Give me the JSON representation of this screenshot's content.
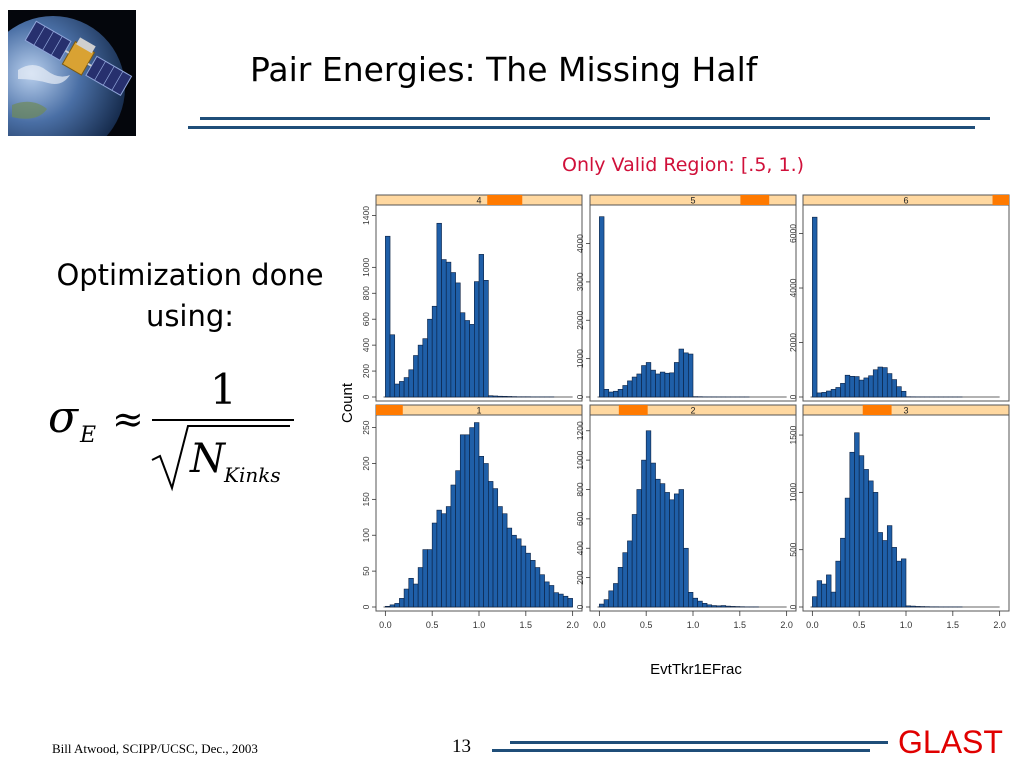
{
  "slide": {
    "title": "Pair Energies: The Missing Half",
    "subnote": "Only Valid Region: [.5, 1.)",
    "optimization_line1": "Optimization done",
    "optimization_line2": "using:",
    "formula": {
      "lhs_symbol": "σ",
      "lhs_subscript": "E",
      "approx": "≈",
      "numerator": "1",
      "denominator_symbol": "N",
      "denominator_subscript": "Kinks"
    },
    "footer": {
      "author": "Bill Atwood,  SCIPP/UCSC, Dec., 2003",
      "page": "13",
      "brand": "GLAST"
    },
    "logo_icon": "glast-satellite-over-earth-icon",
    "colors": {
      "title_rule": "#1f4e79",
      "subnote": "#d0103a",
      "brand": "#e00000",
      "bar_fill": "#1f5fa8",
      "bar_stroke": "#0a1f40",
      "strip_bg": "#ffd8a0",
      "strip_marker": "#ff7a00"
    }
  },
  "chart_data": {
    "type": "bar",
    "xlabel": "EvtTkr1EFrac",
    "ylabel": "Count",
    "x_ticks": [
      "0.0",
      "0.5",
      "1.0",
      "1.5",
      "2.0"
    ],
    "xlim": [
      -0.1,
      2.1
    ],
    "bin_start": 0.0,
    "bin_width": 0.05,
    "panels": [
      {
        "strip_label": "4",
        "strip_marker_range": [
          0.54,
          0.71
        ],
        "ylim": [
          0,
          1450
        ],
        "y_ticks": [
          "0",
          "200",
          "400",
          "600",
          "800",
          "1000",
          "1400"
        ],
        "values": [
          1240,
          480,
          100,
          120,
          150,
          210,
          320,
          400,
          450,
          600,
          700,
          1340,
          1060,
          1040,
          960,
          880,
          650,
          590,
          560,
          890,
          1100,
          900,
          10,
          8,
          6,
          5,
          4,
          3,
          2,
          2,
          2,
          1,
          1,
          1,
          1,
          1,
          0,
          0,
          0,
          0
        ]
      },
      {
        "strip_label": "5",
        "strip_marker_range": [
          0.73,
          0.87
        ],
        "ylim": [
          0,
          4900
        ],
        "y_ticks": [
          "0",
          "1000",
          "2000",
          "3000",
          "4000"
        ],
        "values": [
          4700,
          200,
          130,
          150,
          200,
          300,
          420,
          520,
          600,
          820,
          900,
          700,
          600,
          650,
          620,
          630,
          900,
          1250,
          1150,
          1120,
          10,
          8,
          5,
          4,
          3,
          2,
          2,
          1,
          1,
          1,
          1,
          1,
          0,
          0,
          0,
          0,
          0,
          0,
          0,
          0
        ]
      },
      {
        "strip_label": "6",
        "strip_marker_range": [
          0.92,
          1.0
        ],
        "ylim": [
          0,
          6900
        ],
        "y_ticks": [
          "0",
          "2000",
          "4000",
          "6000"
        ],
        "values": [
          6600,
          150,
          170,
          220,
          280,
          350,
          500,
          800,
          760,
          750,
          620,
          700,
          780,
          1000,
          1100,
          1080,
          860,
          640,
          380,
          210,
          10,
          8,
          5,
          4,
          3,
          2,
          2,
          1,
          1,
          1,
          1,
          1,
          0,
          0,
          0,
          0,
          0,
          0,
          0,
          0
        ]
      },
      {
        "strip_label": "1",
        "strip_marker_range": [
          0.0,
          0.13
        ],
        "ylim": [
          0,
          262
        ],
        "y_ticks": [
          "0",
          "50",
          "100",
          "150",
          "200",
          "250"
        ],
        "values": [
          1,
          3,
          5,
          12,
          25,
          40,
          32,
          55,
          80,
          80,
          117,
          135,
          130,
          140,
          170,
          190,
          240,
          240,
          250,
          257,
          210,
          200,
          175,
          165,
          140,
          130,
          110,
          100,
          95,
          85,
          75,
          65,
          55,
          45,
          35,
          30,
          20,
          18,
          15,
          12
        ]
      },
      {
        "strip_label": "2",
        "strip_marker_range": [
          0.14,
          0.28
        ],
        "ylim": [
          0,
          1280
        ],
        "y_ticks": [
          "0",
          "200",
          "400",
          "600",
          "800",
          "1000",
          "1200"
        ],
        "values": [
          20,
          50,
          110,
          160,
          270,
          370,
          450,
          630,
          800,
          1000,
          1200,
          980,
          870,
          840,
          780,
          730,
          770,
          800,
          400,
          100,
          60,
          40,
          25,
          15,
          10,
          8,
          10,
          6,
          4,
          3,
          2,
          1,
          1,
          1,
          0,
          0,
          0,
          0,
          0,
          0
        ]
      },
      {
        "strip_label": "3",
        "strip_marker_range": [
          0.29,
          0.43
        ],
        "ylim": [
          0,
          1640
        ],
        "y_ticks": [
          "0",
          "500",
          "1000",
          "1500"
        ],
        "values": [
          90,
          230,
          200,
          280,
          130,
          400,
          600,
          950,
          1350,
          1520,
          1320,
          1200,
          1100,
          1000,
          650,
          580,
          710,
          520,
          400,
          420,
          10,
          8,
          5,
          4,
          3,
          2,
          2,
          1,
          1,
          1,
          1,
          1,
          0,
          0,
          0,
          0,
          0,
          0,
          0,
          0
        ]
      }
    ]
  }
}
